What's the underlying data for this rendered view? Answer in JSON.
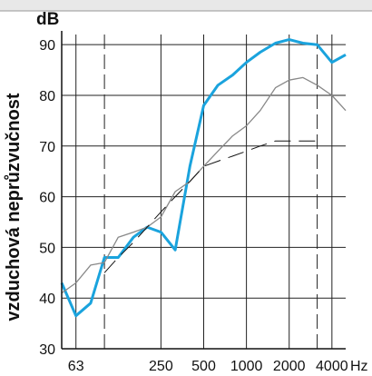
{
  "chart_data": {
    "type": "line",
    "title": "",
    "ylabel": "vzduchová neprůzvučnost",
    "y_unit": "dB",
    "x_unit": "Hz",
    "ylim": [
      30,
      92
    ],
    "yticks": [
      30,
      40,
      50,
      60,
      70,
      80,
      90
    ],
    "x_scale": "log",
    "xlim": [
      50,
      5000
    ],
    "xtick_labels": [
      {
        "x": 63,
        "label": "63"
      },
      {
        "x": 250,
        "label": "250"
      },
      {
        "x": 500,
        "label": "500"
      },
      {
        "x": 1000,
        "label": "1000"
      },
      {
        "x": 2000,
        "label": "2000"
      },
      {
        "x": 4000,
        "label": "4000"
      }
    ],
    "grid": {
      "solid_verticals": [
        63,
        250,
        500,
        1000,
        2000,
        4000
      ],
      "dashed_verticals": [
        100,
        3150
      ]
    },
    "colors": {
      "series_blue": "#1aa3dd",
      "series_gray": "#888888",
      "reference": "#111111"
    },
    "series": [
      {
        "style": "thick-blue",
        "x": [
          50,
          63,
          80,
          100,
          125,
          160,
          200,
          250,
          315,
          400,
          500,
          630,
          800,
          1000,
          1250,
          1600,
          2000,
          2500,
          3150,
          4000,
          5000
        ],
        "y": [
          43,
          36.5,
          39,
          48,
          48,
          52,
          54,
          53,
          49.5,
          66,
          78,
          82,
          84,
          86.5,
          88.5,
          90.3,
          91,
          90.3,
          90,
          86.5,
          88
        ]
      },
      {
        "style": "thin-gray",
        "x": [
          50,
          63,
          80,
          100,
          125,
          160,
          200,
          250,
          315,
          400,
          500,
          630,
          800,
          1000,
          1250,
          1600,
          2000,
          2500,
          3150,
          4000,
          5000
        ],
        "y": [
          41,
          43,
          46.5,
          47,
          52,
          53,
          54,
          56,
          61,
          63,
          66,
          69,
          72,
          74,
          77,
          81.5,
          83,
          83.5,
          82,
          80,
          77
        ]
      },
      {
        "style": "dashed-reference",
        "x": [
          100,
          125,
          160,
          200,
          250,
          315,
          400,
          500,
          630,
          800,
          1000,
          1250,
          1600,
          2000,
          2500,
          3150
        ],
        "y": [
          45,
          48,
          51,
          54,
          57,
          60,
          63,
          66,
          67,
          68,
          69,
          70,
          71,
          71,
          71,
          71
        ]
      }
    ]
  }
}
